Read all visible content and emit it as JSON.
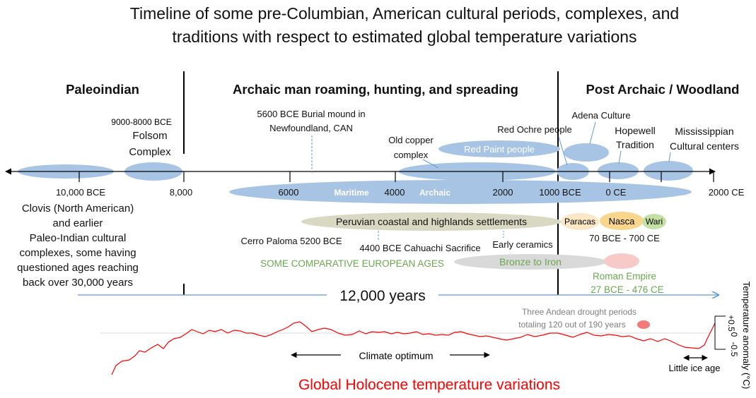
{
  "title_line1": "Timeline of some pre-Columbian, American cultural periods, complexes, and",
  "title_line2": "traditions with respect to estimated global temperature variations",
  "sections": {
    "paleoindian": "Paleoindian",
    "archaic": "Archaic man roaming, hunting, and spreading",
    "post_archaic": "Post Archaic / Woodland"
  },
  "axis_ticks": {
    "t10000": "10,000 BCE",
    "t8000": "8,000",
    "t6000": "6000",
    "t4000": "4000",
    "t2000": "2000",
    "t1000": "1000 BCE",
    "t0": "0 CE",
    "t2000ce": "2000 CE"
  },
  "labels": {
    "folsom_date": "9000-8000 BCE",
    "folsom_1": "Folsom",
    "folsom_2": "Complex",
    "burial_1": "5600 BCE Burial mound in",
    "burial_2": "Newfoundland, CAN",
    "old_copper_1": "Old copper",
    "old_copper_2": "complex",
    "red_paint": "Red Paint people",
    "red_ochre": "Red Ochre people",
    "adena": "Adena Culture",
    "hopewell_1": "Hopewell",
    "hopewell_2": "Tradition",
    "mississippian_1": "Mississippian",
    "mississippian_2": "Cultural centers",
    "maritime": "Maritime",
    "archaic_word": "Archaic",
    "peruvian": "Peruvian coastal and highlands settlements",
    "paracas": "Paracas",
    "nasca": "Nasca",
    "wari": "Wari",
    "nasca_dates": "70 BCE - 700 CE",
    "cerro": "Cerro Paloma 5200 BCE",
    "cahuachi": "4400 BCE Cahuachi Sacrifice",
    "ceramics": "Early ceramics",
    "european": "SOME COMPARATIVE EUROPEAN AGES",
    "bronze_iron": "Bronze to Iron",
    "roman_1": "Roman Empire",
    "roman_2": "27 BCE - 476 CE",
    "clovis_1": "Clovis (North American)",
    "clovis_2": "and earlier",
    "clovis_3": "Paleo-Indian cultural",
    "clovis_4": "complexes, some having",
    "clovis_5": "questioned ages reaching",
    "clovis_6": "back  over 30,000 years",
    "span": "12,000 years",
    "drought_1": "Three Andean drought periods",
    "drought_2": "totaling 120 out of 190 years",
    "climate_opt": "Climate optimum",
    "little_ice": "Little ice age",
    "holocene": "Global Holocene temperature variations",
    "temp_axis": "Temperature anomaly (°C)",
    "temp_plus": "+0.5",
    "temp_zero": "0",
    "temp_minus": "-0.5"
  },
  "colors": {
    "ellipse_blue": "#a7c4e4",
    "peru_olive": "#d9d9c3",
    "paracas": "#fbe7c6",
    "nasca": "#f9d68b",
    "wari": "#c5e0a5",
    "bronze": "#d9d9d9",
    "roman": "#f8c9c9",
    "drought": "#f27a7a",
    "temperature_line": "#ff0000",
    "green_text": "#6aa84f"
  }
}
